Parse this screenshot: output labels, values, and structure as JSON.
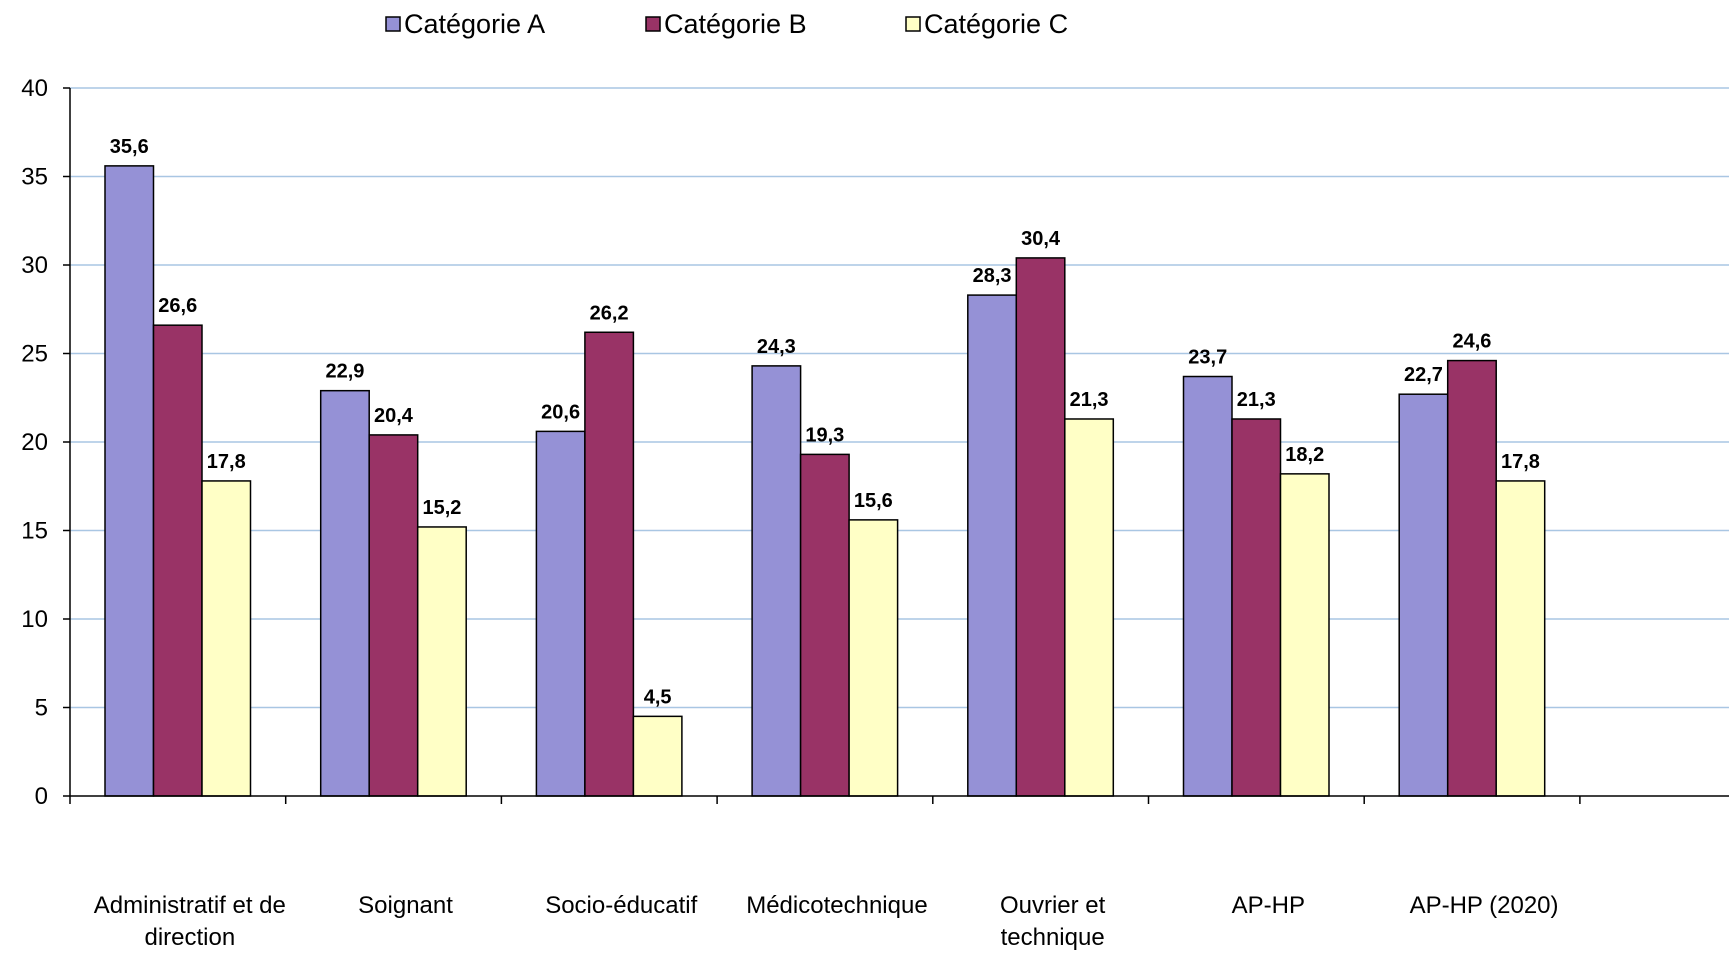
{
  "chart_data": {
    "type": "bar",
    "title": "",
    "xlabel": "",
    "ylabel": "",
    "ylim": [
      0,
      40
    ],
    "yticks": [
      0,
      5,
      10,
      15,
      20,
      25,
      30,
      35,
      40
    ],
    "grid": true,
    "legend_position": "top",
    "categories": [
      [
        "Administratif et de",
        "direction"
      ],
      [
        "Soignant"
      ],
      [
        "Socio-éducatif"
      ],
      [
        "Médicotechnique"
      ],
      [
        "Ouvrier et",
        "technique"
      ],
      [
        "AP-HP"
      ],
      [
        "AP-HP (2020)"
      ]
    ],
    "series": [
      {
        "name": "Catégorie A",
        "color": "#9591d6",
        "values": [
          35.6,
          22.9,
          20.6,
          24.3,
          28.3,
          23.7,
          22.7
        ],
        "labels": [
          "35,6",
          "22,9",
          "20,6",
          "24,3",
          "28,3",
          "23,7",
          "22,7"
        ]
      },
      {
        "name": "Catégorie B",
        "color": "#993366",
        "values": [
          26.6,
          20.4,
          26.2,
          19.3,
          30.4,
          21.3,
          24.6
        ],
        "labels": [
          "26,6",
          "20,4",
          "26,2",
          "19,3",
          "30,4",
          "21,3",
          "24,6"
        ]
      },
      {
        "name": "Catégorie C",
        "color": "#ffffc6",
        "values": [
          17.8,
          15.2,
          4.5,
          15.6,
          21.3,
          18.2,
          17.8
        ],
        "labels": [
          "17,8",
          "15,2",
          "4,5",
          "15,6",
          "21,3",
          "18,2",
          "17,8"
        ]
      }
    ]
  }
}
